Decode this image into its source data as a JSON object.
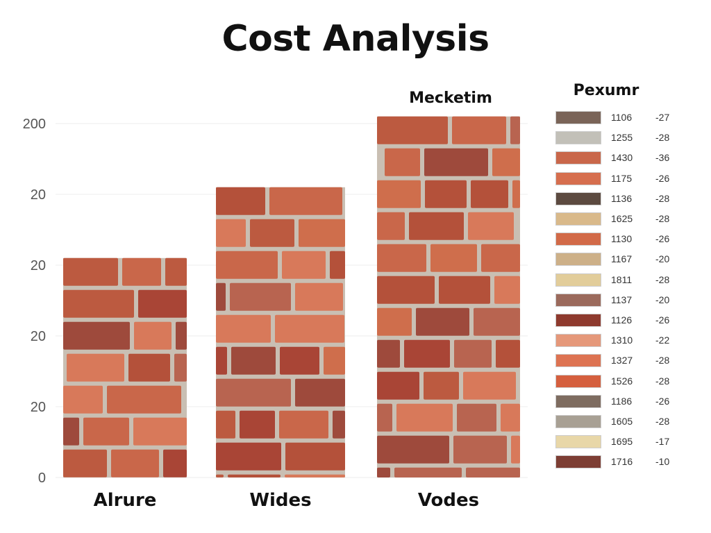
{
  "chart_data": {
    "type": "bar",
    "title": "Cost Analysis",
    "categories": [
      "Alrure",
      "Wides",
      "Vodes"
    ],
    "values": [
      3.1,
      4.1,
      5.1
    ],
    "bar_top_labels": [
      "",
      "",
      "Mecketim"
    ],
    "y_tick_labels": [
      "0",
      "20",
      "20",
      "20",
      "20",
      "200"
    ],
    "grid": true,
    "legend": {
      "title": "Pexumr",
      "placement": "right",
      "entries": [
        {
          "color": "#7a6458",
          "value": "1106",
          "delta": "-27"
        },
        {
          "color": "#c2c0b8",
          "value": "1255",
          "delta": "-28"
        },
        {
          "color": "#c9674a",
          "value": "1430",
          "delta": "-36"
        },
        {
          "color": "#d66e4e",
          "value": "1175",
          "delta": "-26"
        },
        {
          "color": "#5c4a40",
          "value": "1136",
          "delta": "-28"
        },
        {
          "color": "#d9b98a",
          "value": "1625",
          "delta": "-28"
        },
        {
          "color": "#d26a48",
          "value": "1130",
          "delta": "-26"
        },
        {
          "color": "#cdb088",
          "value": "1167",
          "delta": "-20"
        },
        {
          "color": "#e2cd9a",
          "value": "1811",
          "delta": "-28"
        },
        {
          "color": "#9b6a5c",
          "value": "1137",
          "delta": "-20"
        },
        {
          "color": "#8e3a2e",
          "value": "1126",
          "delta": "-26"
        },
        {
          "color": "#e5987a",
          "value": "1310",
          "delta": "-22"
        },
        {
          "color": "#dd7352",
          "value": "1327",
          "delta": "-28"
        },
        {
          "color": "#d55f3e",
          "value": "1526",
          "delta": "-28"
        },
        {
          "color": "#7e6c60",
          "value": "1186",
          "delta": "-26"
        },
        {
          "color": "#a8a094",
          "value": "1605",
          "delta": "-28"
        },
        {
          "color": "#e8d7a8",
          "value": "1695",
          "delta": "-17"
        },
        {
          "color": "#7d3e34",
          "value": "1716",
          "delta": "-10"
        }
      ]
    }
  },
  "colors": {
    "mortar": "#c9bfb3",
    "brick_palette": [
      "#b4513a",
      "#c9674a",
      "#a94536",
      "#d8795a",
      "#bc5a40",
      "#9e4a3c",
      "#cf6e4c",
      "#b86450"
    ],
    "grid": "#eeeeee"
  }
}
